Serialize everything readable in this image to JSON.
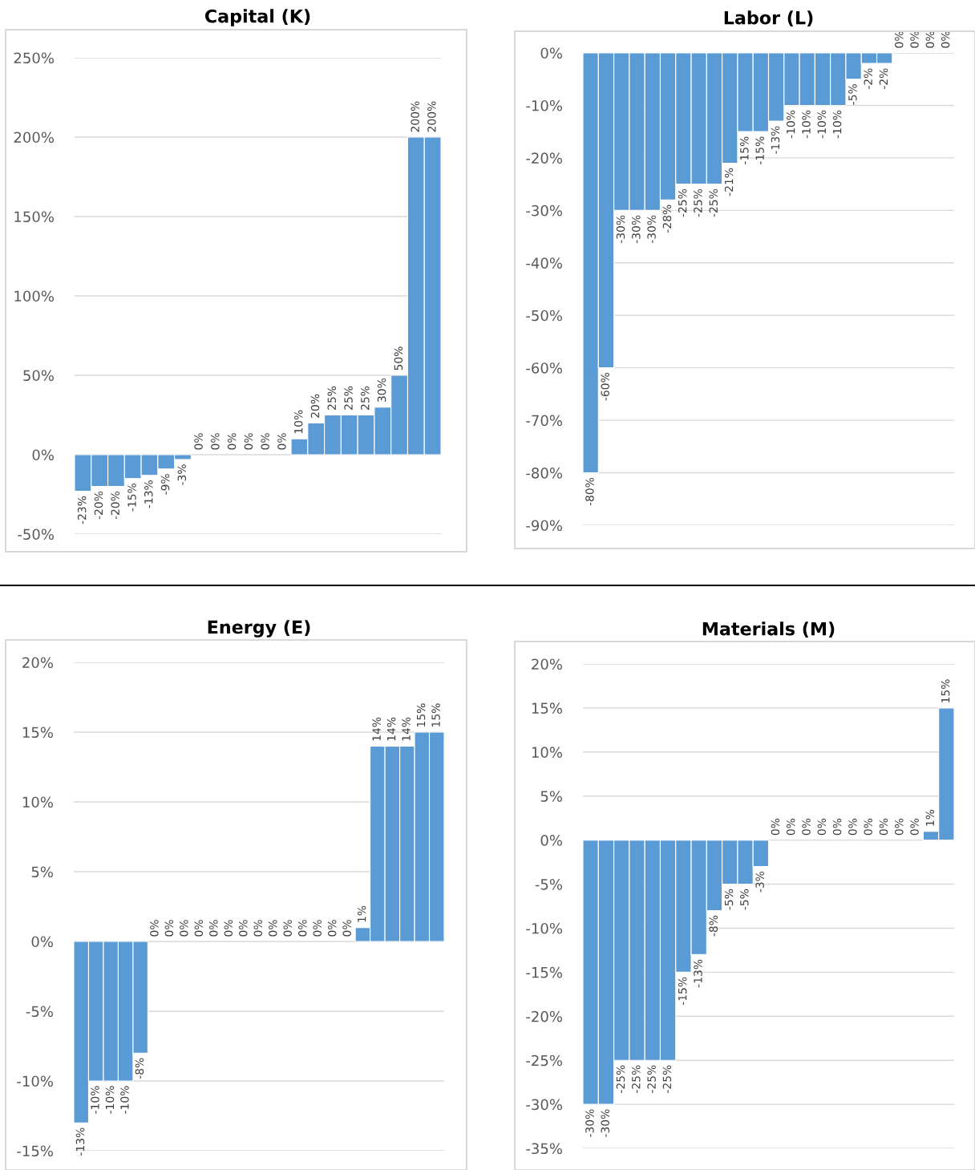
{
  "chart_data": [
    {
      "type": "bar",
      "title": "Capital (K)",
      "color": "#5b9bd5",
      "grid": "y",
      "tick_labels": "y",
      "categories": [
        null,
        null,
        null,
        null,
        null,
        null,
        null,
        null,
        null,
        null,
        null,
        null,
        null,
        null,
        null,
        null,
        null,
        null,
        null,
        null,
        null,
        null
      ],
      "values": [
        -23,
        -20,
        -20,
        -15,
        -13,
        -9,
        -3,
        0,
        0,
        0,
        0,
        0,
        0,
        10,
        20,
        25,
        25,
        25,
        30,
        50,
        200,
        200
      ],
      "value_labels": [
        "-23%",
        "-20%",
        "-20%",
        "-15%",
        "-13%",
        "-9%",
        "-3%",
        "0%",
        "0%",
        "0%",
        "0%",
        "0%",
        "0%",
        "10%",
        "20%",
        "25%",
        "25%",
        "25%",
        "30%",
        "50%",
        "200%",
        "200%"
      ],
      "ylim": [
        -50,
        250
      ],
      "yticks": [
        {
          "value": -50,
          "label": "-50%"
        },
        {
          "value": 0,
          "label": "0%"
        },
        {
          "value": 50,
          "label": "50%"
        },
        {
          "value": 100,
          "label": "100%"
        },
        {
          "value": 150,
          "label": "150%"
        },
        {
          "value": 200,
          "label": "200%"
        },
        {
          "value": 250,
          "label": "250%"
        }
      ]
    },
    {
      "type": "bar",
      "title": "Labor (L)",
      "color": "#5b9bd5",
      "grid": "y",
      "tick_labels": "y",
      "categories": [
        null,
        null,
        null,
        null,
        null,
        null,
        null,
        null,
        null,
        null,
        null,
        null,
        null,
        null,
        null,
        null,
        null,
        null,
        null,
        null,
        null,
        null,
        null,
        null
      ],
      "values": [
        -80,
        -60,
        -30,
        -30,
        -30,
        -28,
        -25,
        -25,
        -25,
        -21,
        -15,
        -15,
        -13,
        -10,
        -10,
        -10,
        -10,
        -5,
        -2,
        -2,
        0,
        0,
        0,
        0
      ],
      "value_labels": [
        "-80%",
        "-60%",
        "-30%",
        "-30%",
        "-30%",
        "-28%",
        "-25%",
        "-25%",
        "-25%",
        "-21%",
        "-15%",
        "-15%",
        "-13%",
        "-10%",
        "-10%",
        "-10%",
        "-10%",
        "-5%",
        "-2%",
        "-2%",
        "0%",
        "0%",
        "0%",
        "0%"
      ],
      "ylim": [
        -90,
        0
      ],
      "yticks": [
        {
          "value": -90,
          "label": "-90%"
        },
        {
          "value": -80,
          "label": "-80%"
        },
        {
          "value": -70,
          "label": "-70%"
        },
        {
          "value": -60,
          "label": "-60%"
        },
        {
          "value": -50,
          "label": "-50%"
        },
        {
          "value": -40,
          "label": "-40%"
        },
        {
          "value": -30,
          "label": "-30%"
        },
        {
          "value": -20,
          "label": "-20%"
        },
        {
          "value": -10,
          "label": "-10%"
        },
        {
          "value": 0,
          "label": "0%"
        }
      ]
    },
    {
      "type": "bar",
      "title": "Energy (E)",
      "color": "#5b9bd5",
      "grid": "y",
      "tick_labels": "y",
      "categories": [
        null,
        null,
        null,
        null,
        null,
        null,
        null,
        null,
        null,
        null,
        null,
        null,
        null,
        null,
        null,
        null,
        null,
        null,
        null,
        null,
        null,
        null,
        null,
        null,
        null
      ],
      "values": [
        -13,
        -10,
        -10,
        -10,
        -8,
        0,
        0,
        0,
        0,
        0,
        0,
        0,
        0,
        0,
        0,
        0,
        0,
        0,
        0,
        1,
        14,
        14,
        14,
        15,
        15
      ],
      "value_labels": [
        "-13%",
        "-10%",
        "-10%",
        "-10%",
        "-8%",
        "0%",
        "0%",
        "0%",
        "0%",
        "0%",
        "0%",
        "0%",
        "0%",
        "0%",
        "0%",
        "0%",
        "0%",
        "0%",
        "0%",
        "1%",
        "14%",
        "14%",
        "14%",
        "15%",
        "15%"
      ],
      "ylim": [
        -15,
        20
      ],
      "yticks": [
        {
          "value": -15,
          "label": "-15%"
        },
        {
          "value": -10,
          "label": "-10%"
        },
        {
          "value": -5,
          "label": "-5%"
        },
        {
          "value": 0,
          "label": "0%"
        },
        {
          "value": 5,
          "label": "5%"
        },
        {
          "value": 10,
          "label": "10%"
        },
        {
          "value": 15,
          "label": "15%"
        },
        {
          "value": 20,
          "label": "20%"
        }
      ]
    },
    {
      "type": "bar",
      "title": "Materials (M)",
      "color": "#5b9bd5",
      "grid": "y",
      "tick_labels": "y",
      "categories": [
        null,
        null,
        null,
        null,
        null,
        null,
        null,
        null,
        null,
        null,
        null,
        null,
        null,
        null,
        null,
        null,
        null,
        null,
        null,
        null,
        null,
        null,
        null,
        null
      ],
      "values": [
        -30,
        -30,
        -25,
        -25,
        -25,
        -25,
        -15,
        -13,
        -8,
        -5,
        -5,
        -3,
        0,
        0,
        0,
        0,
        0,
        0,
        0,
        0,
        0,
        0,
        1,
        15
      ],
      "value_labels": [
        "-30%",
        "-30%",
        "-25%",
        "-25%",
        "-25%",
        "-25%",
        "-15%",
        "-13%",
        "-8%",
        "-5%",
        "-5%",
        "-3%",
        "0%",
        "0%",
        "0%",
        "0%",
        "0%",
        "0%",
        "0%",
        "0%",
        "0%",
        "0%",
        "1%",
        "15%"
      ],
      "ylim": [
        -35,
        20
      ],
      "yticks": [
        {
          "value": -35,
          "label": "-35%"
        },
        {
          "value": -30,
          "label": "-30%"
        },
        {
          "value": -25,
          "label": "-25%"
        },
        {
          "value": -20,
          "label": "-20%"
        },
        {
          "value": -15,
          "label": "-15%"
        },
        {
          "value": -10,
          "label": "-10%"
        },
        {
          "value": -5,
          "label": "-5%"
        },
        {
          "value": 0,
          "label": "0%"
        },
        {
          "value": 5,
          "label": "5%"
        },
        {
          "value": 10,
          "label": "10%"
        },
        {
          "value": 15,
          "label": "15%"
        },
        {
          "value": 20,
          "label": "20%"
        }
      ]
    }
  ]
}
